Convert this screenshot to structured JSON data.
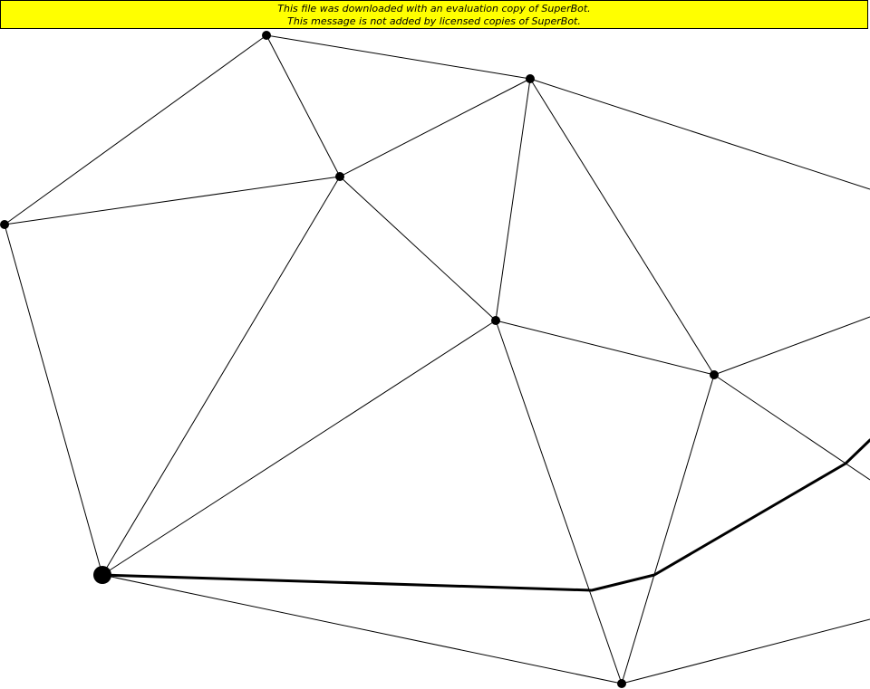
{
  "banner": {
    "line1": "This file was downloaded with an evaluation copy of SuperBot.",
    "line2": "This message is not added by licensed copies of SuperBot."
  },
  "colors": {
    "banner_background": "#ffff00",
    "edge": "#000000",
    "node": "#000000",
    "path": "#000000"
  }
}
